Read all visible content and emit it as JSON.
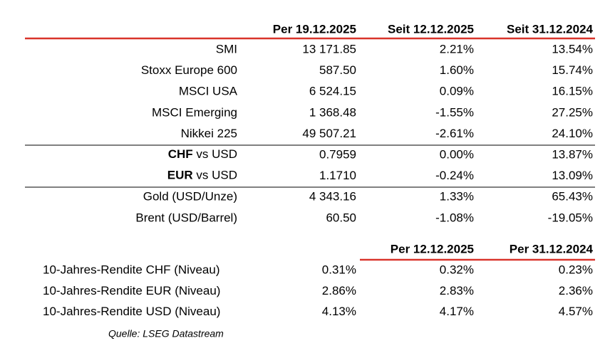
{
  "header": [
    "Per 19.12.2025",
    "Seit 12.12.2025",
    "Seit 31.12.2024"
  ],
  "groups": [
    [
      {
        "label": "SMI",
        "values": [
          "13 171.85",
          "2.21%",
          "13.54%"
        ]
      },
      {
        "label": "Stoxx Europe 600",
        "values": [
          "587.50",
          "1.60%",
          "15.74%"
        ]
      },
      {
        "label": "MSCI USA",
        "values": [
          "6 524.15",
          "0.09%",
          "16.15%"
        ]
      },
      {
        "label": "MSCI Emerging",
        "values": [
          "1 368.48",
          "-1.55%",
          "27.25%"
        ]
      },
      {
        "label": "Nikkei 225",
        "values": [
          "49 507.21",
          "-2.61%",
          "24.10%"
        ]
      }
    ],
    [
      {
        "label_bold": "CHF",
        "label": "vs USD",
        "values": [
          "0.7959",
          "0.00%",
          "13.87%"
        ]
      },
      {
        "label_bold": "EUR",
        "label": "vs USD",
        "values": [
          "1.1710",
          "-0.24%",
          "13.09%"
        ]
      }
    ],
    [
      {
        "label": "Gold (USD/Unze)",
        "values": [
          "4 343.16",
          "1.33%",
          "65.43%"
        ]
      },
      {
        "label": "Brent (USD/Barrel)",
        "values": [
          "60.50",
          "-1.08%",
          "-19.05%"
        ]
      }
    ]
  ],
  "yields": {
    "header": [
      "Per 12.12.2025",
      "Per 31.12.2024"
    ],
    "rows": [
      {
        "label": "10-Jahres-Rendite CHF (Niveau)",
        "values": [
          "0.31%",
          "0.32%",
          "0.23%"
        ]
      },
      {
        "label": "10-Jahres-Rendite EUR (Niveau)",
        "values": [
          "2.86%",
          "2.83%",
          "2.36%"
        ]
      },
      {
        "label": "10-Jahres-Rendite USD (Niveau)",
        "values": [
          "4.13%",
          "4.17%",
          "4.57%"
        ]
      }
    ]
  },
  "source": "Quelle: LSEG Datastream"
}
